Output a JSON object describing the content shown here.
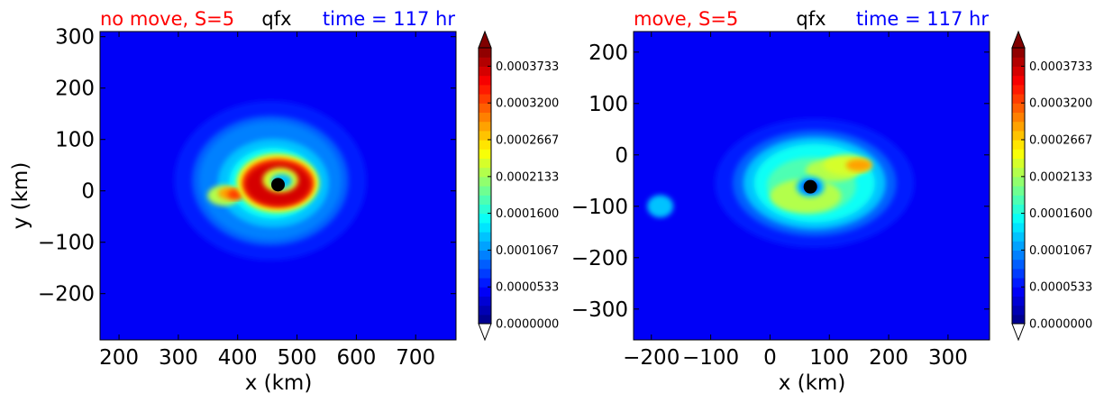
{
  "chart_data": [
    {
      "type": "heatmap",
      "title_left": "no move, S=5",
      "title_center": "qfx",
      "title_right": "time = 117 hr",
      "xlabel": "x (km)",
      "ylabel": "y (km)",
      "xlim": [
        168,
        768
      ],
      "ylim": [
        -290,
        310
      ],
      "xticks": [
        "200",
        "300",
        "400",
        "500",
        "600",
        "700"
      ],
      "xtick_values": [
        200,
        300,
        400,
        500,
        600,
        700
      ],
      "yticks": [
        "−200",
        "−100",
        "0",
        "100",
        "200",
        "300"
      ],
      "ytick_values": [
        -200,
        -100,
        0,
        100,
        200,
        300
      ],
      "storm_center": {
        "x": 468,
        "y": 12
      },
      "features": {
        "background_level": 5e-05,
        "warm_region": {
          "cx": 455,
          "cy": 20,
          "rx": 120,
          "ry": 115,
          "level": 0.00012
        },
        "ring": {
          "cx": 468,
          "cy": 15,
          "rx": 55,
          "ry": 42,
          "level": 0.00037
        },
        "tail": {
          "x": 385,
          "y": -5,
          "level": 0.00032
        }
      }
    },
    {
      "type": "heatmap",
      "title_left": "move, S=5",
      "title_center": "qfx",
      "title_right": "time = 117 hr",
      "xlabel": "x (km)",
      "ylabel": "",
      "xlim": [
        -230,
        370
      ],
      "ylim": [
        -360,
        240
      ],
      "xticks": [
        "−200",
        "−100",
        "0",
        "100",
        "200",
        "300"
      ],
      "xtick_values": [
        -200,
        -100,
        0,
        100,
        200,
        300
      ],
      "yticks": [
        "−300",
        "−200",
        "−100",
        "0",
        "100",
        "200"
      ],
      "ytick_values": [
        -300,
        -200,
        -100,
        0,
        100,
        200
      ],
      "storm_center": {
        "x": 68,
        "y": -62
      },
      "features": {
        "background_level": 5e-05,
        "warm_region": {
          "cx": 75,
          "cy": -55,
          "rx": 120,
          "ry": 90,
          "level": 0.00015
        },
        "inner_band": {
          "cx": 70,
          "cy": -60,
          "rx": 75,
          "ry": 55,
          "level": 0.00022
        },
        "hot_spot": {
          "x": 150,
          "y": -20,
          "level": 0.00028
        }
      }
    }
  ],
  "colorbar": {
    "min": 0.0,
    "max": 0.0004,
    "levels": 30,
    "tick_labels": [
      "0.0003733",
      "0.0003200",
      "0.0002667",
      "0.0002133",
      "0.0001600",
      "0.0001067",
      "0.0000533",
      "0.0000000"
    ],
    "tick_values": [
      0.0003733,
      0.00032,
      0.0002667,
      0.0002133,
      0.00016,
      0.0001067,
      5.33e-05,
      0.0
    ],
    "colormap": "jet",
    "extend": "both"
  },
  "colors": {
    "title_left": "#ff0000",
    "title_center": "#000000",
    "title_right": "#0000ff",
    "storm_marker": "#000000"
  }
}
